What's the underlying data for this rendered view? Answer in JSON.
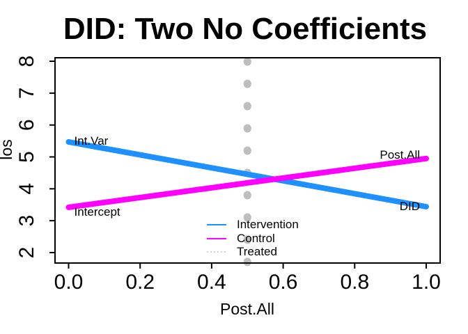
{
  "chart_data": {
    "type": "line",
    "title": "DID: Two No Coefficients",
    "xlabel": "Post.All",
    "ylabel": "los",
    "xlim": [
      0,
      1
    ],
    "ylim": [
      2,
      8
    ],
    "x_ticks": [
      0.0,
      0.2,
      0.4,
      0.6,
      0.8,
      1.0
    ],
    "x_tick_labels": [
      "0.0",
      "0.2",
      "0.4",
      "0.6",
      "0.8",
      "1.0"
    ],
    "y_ticks": [
      2,
      3,
      4,
      5,
      6,
      7,
      8
    ],
    "y_tick_labels": [
      "2",
      "3",
      "4",
      "5",
      "6",
      "7",
      "8"
    ],
    "grid": false,
    "box": true,
    "series": [
      {
        "name": "Intervention",
        "kind": "line",
        "color": "#1E90FF",
        "x": [
          0,
          1
        ],
        "y": [
          5.47,
          3.44
        ],
        "linewidth": 8
      },
      {
        "name": "Control",
        "kind": "line",
        "color": "#FF00FF",
        "x": [
          0,
          1
        ],
        "y": [
          3.42,
          4.95
        ],
        "linewidth": 8
      },
      {
        "name": "Treated",
        "kind": "vline",
        "color": "#BEBEBE",
        "x": 0.5,
        "style": "dotted",
        "linewidth": 11
      }
    ],
    "annotations": [
      {
        "text": "Int.Var",
        "x": 0,
        "y": 5.47,
        "side": "right"
      },
      {
        "text": "Intercept",
        "x": 0,
        "y": 3.42,
        "side": "right"
      },
      {
        "text": "Post.All",
        "x": 1,
        "y": 4.95,
        "side": "left"
      },
      {
        "text": "DID",
        "x": 1,
        "y": 3.44,
        "side": "left"
      }
    ],
    "legend": {
      "position": "bottom-center",
      "border": false,
      "entries": [
        {
          "label": "Intervention",
          "color": "#1E90FF",
          "style": "solid"
        },
        {
          "label": "Control",
          "color": "#FF00FF",
          "style": "solid"
        },
        {
          "label": "Treated",
          "color": "#BEBEBE",
          "style": "dotted"
        }
      ]
    },
    "colors": {
      "axis": "#000000",
      "background": "#FFFFFF",
      "text": "#000000"
    }
  }
}
